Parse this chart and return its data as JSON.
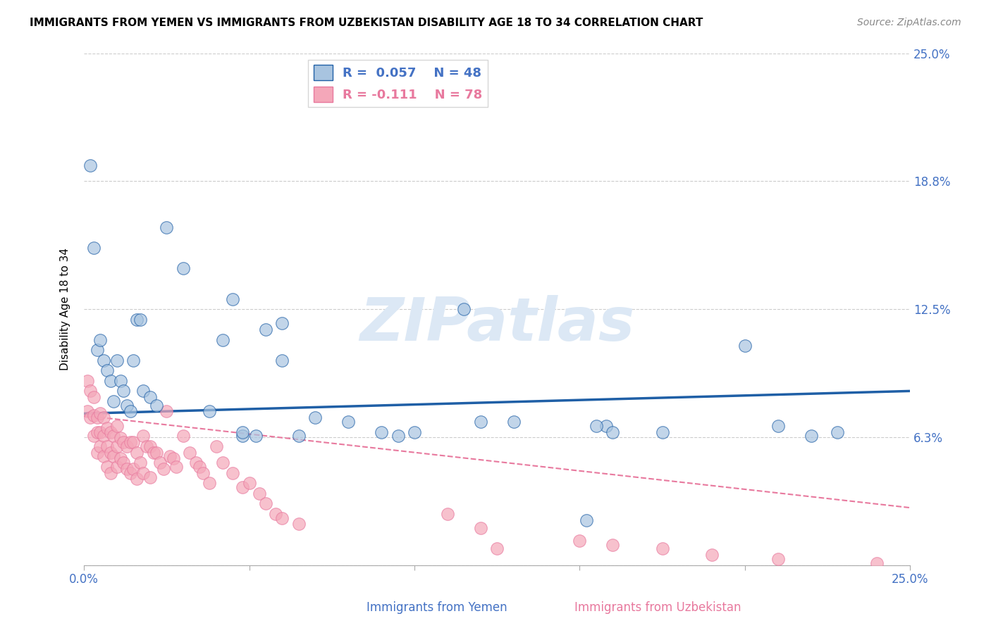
{
  "title": "IMMIGRANTS FROM YEMEN VS IMMIGRANTS FROM UZBEKISTAN DISABILITY AGE 18 TO 34 CORRELATION CHART",
  "source": "Source: ZipAtlas.com",
  "ylabel": "Disability Age 18 to 34",
  "xlim": [
    0.0,
    0.25
  ],
  "ylim": [
    0.0,
    0.25
  ],
  "color_yemen": "#a8c4e0",
  "color_uzbekistan": "#f4a7b9",
  "color_line_yemen": "#1f5fa6",
  "color_line_uzbekistan": "#e8799e",
  "watermark": "ZIPatlas",
  "watermark_color": "#dce8f5",
  "legend_label1": "R =  0.057    N = 48",
  "legend_label2": "R = -0.111    N = 78",
  "yemen_x": [
    0.002,
    0.003,
    0.004,
    0.005,
    0.006,
    0.007,
    0.008,
    0.009,
    0.01,
    0.011,
    0.012,
    0.013,
    0.014,
    0.015,
    0.016,
    0.017,
    0.018,
    0.02,
    0.022,
    0.025,
    0.03,
    0.038,
    0.042,
    0.045,
    0.048,
    0.055,
    0.06,
    0.065,
    0.07,
    0.09,
    0.095,
    0.115,
    0.12,
    0.152,
    0.158,
    0.155,
    0.16,
    0.175,
    0.2,
    0.21,
    0.22,
    0.228,
    0.048,
    0.052,
    0.06,
    0.08,
    0.1,
    0.13
  ],
  "yemen_y": [
    0.195,
    0.155,
    0.105,
    0.11,
    0.1,
    0.095,
    0.09,
    0.08,
    0.1,
    0.09,
    0.085,
    0.078,
    0.075,
    0.1,
    0.12,
    0.12,
    0.085,
    0.082,
    0.078,
    0.165,
    0.145,
    0.075,
    0.11,
    0.13,
    0.063,
    0.115,
    0.118,
    0.063,
    0.072,
    0.065,
    0.063,
    0.125,
    0.07,
    0.022,
    0.068,
    0.068,
    0.065,
    0.065,
    0.107,
    0.068,
    0.063,
    0.065,
    0.065,
    0.063,
    0.1,
    0.07,
    0.065,
    0.07
  ],
  "uzbek_x": [
    0.001,
    0.001,
    0.002,
    0.002,
    0.003,
    0.003,
    0.003,
    0.004,
    0.004,
    0.004,
    0.005,
    0.005,
    0.005,
    0.006,
    0.006,
    0.006,
    0.007,
    0.007,
    0.007,
    0.008,
    0.008,
    0.008,
    0.009,
    0.009,
    0.01,
    0.01,
    0.01,
    0.011,
    0.011,
    0.012,
    0.012,
    0.013,
    0.013,
    0.014,
    0.014,
    0.015,
    0.015,
    0.016,
    0.016,
    0.017,
    0.018,
    0.018,
    0.019,
    0.02,
    0.02,
    0.021,
    0.022,
    0.023,
    0.024,
    0.025,
    0.026,
    0.027,
    0.028,
    0.03,
    0.032,
    0.034,
    0.035,
    0.036,
    0.038,
    0.04,
    0.042,
    0.045,
    0.048,
    0.05,
    0.053,
    0.055,
    0.058,
    0.06,
    0.065,
    0.11,
    0.12,
    0.125,
    0.15,
    0.16,
    0.175,
    0.19,
    0.21,
    0.24
  ],
  "uzbek_y": [
    0.09,
    0.075,
    0.085,
    0.072,
    0.082,
    0.073,
    0.063,
    0.072,
    0.065,
    0.055,
    0.074,
    0.065,
    0.058,
    0.072,
    0.063,
    0.053,
    0.067,
    0.058,
    0.048,
    0.065,
    0.055,
    0.045,
    0.063,
    0.053,
    0.068,
    0.058,
    0.048,
    0.062,
    0.052,
    0.06,
    0.05,
    0.058,
    0.047,
    0.06,
    0.045,
    0.06,
    0.047,
    0.055,
    0.042,
    0.05,
    0.063,
    0.045,
    0.058,
    0.058,
    0.043,
    0.055,
    0.055,
    0.05,
    0.047,
    0.075,
    0.053,
    0.052,
    0.048,
    0.063,
    0.055,
    0.05,
    0.048,
    0.045,
    0.04,
    0.058,
    0.05,
    0.045,
    0.038,
    0.04,
    0.035,
    0.03,
    0.025,
    0.023,
    0.02,
    0.025,
    0.018,
    0.008,
    0.012,
    0.01,
    0.008,
    0.005,
    0.003,
    0.001
  ]
}
